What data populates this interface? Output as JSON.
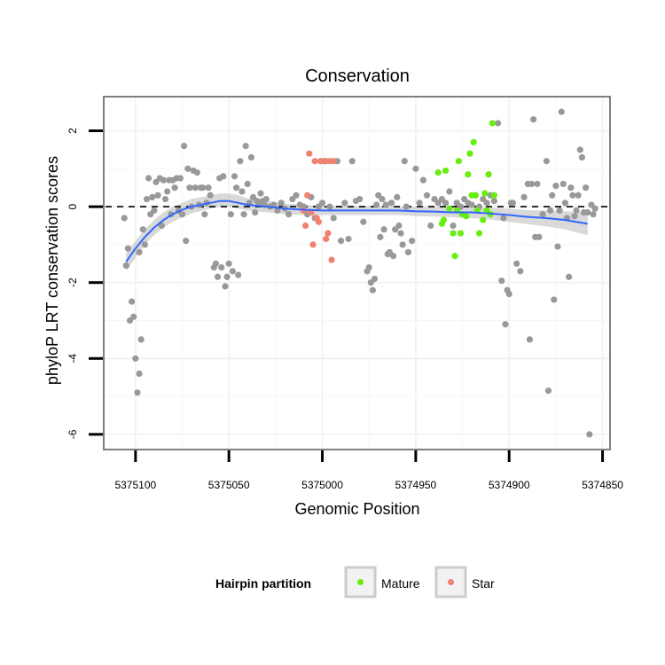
{
  "chart_data": {
    "type": "scatter",
    "title": "Conservation",
    "xlabel": "Genomic Position",
    "ylabel": "phyloP LRT conservation scores",
    "x_reversed": true,
    "xlim": [
      5375117,
      5374846
    ],
    "ylim": [
      -6.4,
      2.9
    ],
    "x_ticks": [
      5375100,
      5375050,
      5375000,
      5374950,
      5374900,
      5374850
    ],
    "x_tick_labels": [
      "5375100",
      "5375050",
      "5375000",
      "5374950",
      "5374900",
      "5374850"
    ],
    "y_ticks": [
      2,
      0,
      -2,
      -4,
      -6
    ],
    "y_tick_labels": [
      "2",
      "0",
      "-2",
      "-4",
      "-6"
    ],
    "reference_line": {
      "y": 0,
      "style": "dashed"
    },
    "legend": {
      "title": "Hairpin partition",
      "position": "bottom",
      "entries": [
        {
          "label": "Mature",
          "color": "#66ee11"
        },
        {
          "label": "Star",
          "color": "#f08070"
        }
      ]
    },
    "colors": {
      "other": "#999999",
      "Mature": "#66ee11",
      "Star": "#f08070",
      "smooth": "#3366ff",
      "band": "#cccccc"
    },
    "series": [
      {
        "name": "Other",
        "points": [
          [
            5375106,
            -0.3
          ],
          [
            5375105,
            -1.55
          ],
          [
            5375104,
            -1.1
          ],
          [
            5375103,
            -3
          ],
          [
            5375102,
            -2.5
          ],
          [
            5375101,
            -2.9
          ],
          [
            5375100,
            -4
          ],
          [
            5375099,
            -4.9
          ],
          [
            5375098,
            -4.4
          ],
          [
            5375097,
            -3.5
          ],
          [
            5375098,
            -1.2
          ],
          [
            5375096,
            -0.6
          ],
          [
            5375095,
            -1
          ],
          [
            5375094,
            0.2
          ],
          [
            5375093,
            0.75
          ],
          [
            5375092,
            -0.2
          ],
          [
            5375091,
            0.25
          ],
          [
            5375090,
            -0.1
          ],
          [
            5375089,
            0.65
          ],
          [
            5375088,
            0.3
          ],
          [
            5375087,
            0.75
          ],
          [
            5375086,
            -0.5
          ],
          [
            5375085,
            0.7
          ],
          [
            5375084,
            0.2
          ],
          [
            5375083,
            0.4
          ],
          [
            5375082,
            0.7
          ],
          [
            5375081,
            -0.2
          ],
          [
            5375080,
            0.7
          ],
          [
            5375079,
            0.5
          ],
          [
            5375078,
            0.75
          ],
          [
            5375077,
            -0.1
          ],
          [
            5375076,
            0.75
          ],
          [
            5375075,
            -0.2
          ],
          [
            5375074,
            1.6
          ],
          [
            5375073,
            -0.9
          ],
          [
            5375072,
            1
          ],
          [
            5375071,
            0.5
          ],
          [
            5375070,
            0
          ],
          [
            5375069,
            0.95
          ],
          [
            5375068,
            0.5
          ],
          [
            5375067,
            0.9
          ],
          [
            5375066,
            0.05
          ],
          [
            5375065,
            0.5
          ],
          [
            5375064,
            0.5
          ],
          [
            5375063,
            -0.2
          ],
          [
            5375062,
            0.1
          ],
          [
            5375061,
            0.5
          ],
          [
            5375060,
            0.3
          ],
          [
            5375058,
            -1.6
          ],
          [
            5375057,
            -1.5
          ],
          [
            5375056,
            -1.85
          ],
          [
            5375055,
            0.75
          ],
          [
            5375054,
            -1.6
          ],
          [
            5375053,
            0.8
          ],
          [
            5375052,
            -2.1
          ],
          [
            5375051,
            -1.85
          ],
          [
            5375050,
            -1.5
          ],
          [
            5375049,
            -0.2
          ],
          [
            5375048,
            -1.7
          ],
          [
            5375047,
            0.8
          ],
          [
            5375046,
            0.5
          ],
          [
            5375045,
            -1.8
          ],
          [
            5375044,
            1.2
          ],
          [
            5375043,
            0.4
          ],
          [
            5375042,
            -0.2
          ],
          [
            5375041,
            1.6
          ],
          [
            5375040,
            0.6
          ],
          [
            5375039,
            0.1
          ],
          [
            5375038,
            1.3
          ],
          [
            5375037,
            0.25
          ],
          [
            5375036,
            -0.15
          ],
          [
            5375035,
            0.15
          ],
          [
            5375034,
            0.1
          ],
          [
            5375033,
            0.35
          ],
          [
            5375032,
            0.15
          ],
          [
            5375031,
            0.05
          ],
          [
            5375030,
            0.2
          ],
          [
            5375028,
            0
          ],
          [
            5375026,
            0.05
          ],
          [
            5375024,
            -0.1
          ],
          [
            5375022,
            0.1
          ],
          [
            5375020,
            -0.05
          ],
          [
            5375018,
            -0.2
          ],
          [
            5375016,
            0.2
          ],
          [
            5375014,
            0.3
          ],
          [
            5375012,
            0.05
          ],
          [
            5375010,
            0
          ],
          [
            5375008,
            -0.2
          ],
          [
            5375006,
            0.25
          ],
          [
            5375004,
            -0.3
          ],
          [
            5375002,
            0
          ],
          [
            5375000,
            0.1
          ],
          [
            5374998,
            1.2
          ],
          [
            5374996,
            0
          ],
          [
            5374994,
            -0.3
          ],
          [
            5374992,
            1.2
          ],
          [
            5374990,
            -0.9
          ],
          [
            5374988,
            0.1
          ],
          [
            5374986,
            -0.85
          ],
          [
            5374984,
            1.2
          ],
          [
            5374982,
            0.15
          ],
          [
            5374980,
            0.2
          ],
          [
            5374978,
            -0.4
          ],
          [
            5374976,
            -1.7
          ],
          [
            5374975,
            -1.6
          ],
          [
            5374974,
            -2
          ],
          [
            5374973,
            -2.2
          ],
          [
            5374972,
            -1.9
          ],
          [
            5374971,
            0.05
          ],
          [
            5374970,
            0.3
          ],
          [
            5374969,
            -0.8
          ],
          [
            5374968,
            0.2
          ],
          [
            5374967,
            -0.6
          ],
          [
            5374966,
            0.05
          ],
          [
            5374965,
            -1.25
          ],
          [
            5374964,
            -1.2
          ],
          [
            5374963,
            0.1
          ],
          [
            5374962,
            -1.3
          ],
          [
            5374961,
            -0.6
          ],
          [
            5374960,
            0.25
          ],
          [
            5374959,
            -0.5
          ],
          [
            5374958,
            -0.7
          ],
          [
            5374957,
            -1
          ],
          [
            5374956,
            1.2
          ],
          [
            5374955,
            0
          ],
          [
            5374954,
            -1.2
          ],
          [
            5374952,
            -0.9
          ],
          [
            5374950,
            1
          ],
          [
            5374948,
            0.1
          ],
          [
            5374946,
            0.7
          ],
          [
            5374944,
            0.3
          ],
          [
            5374942,
            -0.5
          ],
          [
            5374940,
            0.2
          ],
          [
            5374938,
            0.1
          ],
          [
            5374936,
            0.2
          ],
          [
            5374934,
            0.1
          ],
          [
            5374932,
            0.4
          ],
          [
            5374930,
            -0.5
          ],
          [
            5374928,
            0.1
          ],
          [
            5374926,
            0
          ],
          [
            5374924,
            0.2
          ],
          [
            5374922,
            0.1
          ],
          [
            5374920,
            0.05
          ],
          [
            5374918,
            0.3
          ],
          [
            5374916,
            0
          ],
          [
            5374914,
            0.2
          ],
          [
            5374912,
            0.1
          ],
          [
            5374910,
            0.3
          ],
          [
            5374908,
            0.15
          ],
          [
            5374906,
            2.2
          ],
          [
            5374904,
            -1.95
          ],
          [
            5374903,
            -0.3
          ],
          [
            5374902,
            -3.1
          ],
          [
            5374901,
            -2.2
          ],
          [
            5374900,
            -2.3
          ],
          [
            5374899,
            0.1
          ],
          [
            5374898,
            0.1
          ],
          [
            5374896,
            -1.5
          ],
          [
            5374894,
            -1.7
          ],
          [
            5374892,
            0.25
          ],
          [
            5374890,
            0.6
          ],
          [
            5374889,
            -3.5
          ],
          [
            5374888,
            0.6
          ],
          [
            5374887,
            2.3
          ],
          [
            5374886,
            -0.8
          ],
          [
            5374885,
            0.6
          ],
          [
            5374884,
            -0.8
          ],
          [
            5374882,
            -0.2
          ],
          [
            5374880,
            1.2
          ],
          [
            5374879,
            -4.85
          ],
          [
            5374878,
            -0.1
          ],
          [
            5374877,
            0.3
          ],
          [
            5374876,
            -2.45
          ],
          [
            5374875,
            0.55
          ],
          [
            5374874,
            -1.05
          ],
          [
            5374873,
            -0.1
          ],
          [
            5374872,
            2.5
          ],
          [
            5374871,
            0.6
          ],
          [
            5374870,
            0.1
          ],
          [
            5374869,
            -0.3
          ],
          [
            5374868,
            -1.85
          ],
          [
            5374867,
            0.5
          ],
          [
            5374866,
            0.3
          ],
          [
            5374865,
            -0.25
          ],
          [
            5374864,
            -0.1
          ],
          [
            5374863,
            0.3
          ],
          [
            5374862,
            1.5
          ],
          [
            5374861,
            1.3
          ],
          [
            5374860,
            -0.15
          ],
          [
            5374859,
            0.5
          ],
          [
            5374858,
            -0.15
          ],
          [
            5374857,
            -6
          ],
          [
            5374856,
            0.05
          ],
          [
            5374855,
            -0.2
          ],
          [
            5374854,
            -0.05
          ]
        ]
      },
      {
        "name": "Mature",
        "points": [
          [
            5374938,
            0.9
          ],
          [
            5374936,
            -0.45
          ],
          [
            5374935,
            -0.35
          ],
          [
            5374934,
            0.95
          ],
          [
            5374932,
            -0.05
          ],
          [
            5374930,
            -0.7
          ],
          [
            5374929,
            -1.3
          ],
          [
            5374928,
            -0.1
          ],
          [
            5374927,
            1.2
          ],
          [
            5374926,
            -0.7
          ],
          [
            5374925,
            -0.2
          ],
          [
            5374923,
            -0.25
          ],
          [
            5374922,
            0.85
          ],
          [
            5374921,
            1.4
          ],
          [
            5374920,
            0.3
          ],
          [
            5374919,
            1.7
          ],
          [
            5374918,
            0.3
          ],
          [
            5374917,
            -0.1
          ],
          [
            5374916,
            -0.7
          ],
          [
            5374914,
            -0.35
          ],
          [
            5374913,
            0.35
          ],
          [
            5374912,
            -0.1
          ],
          [
            5374911,
            0.85
          ],
          [
            5374910,
            -0.2
          ],
          [
            5374909,
            2.2
          ],
          [
            5374908,
            0.3
          ]
        ]
      },
      {
        "name": "Star",
        "points": [
          [
            5375010,
            -0.1
          ],
          [
            5375009,
            -0.5
          ],
          [
            5375008,
            0.3
          ],
          [
            5375007,
            1.4
          ],
          [
            5375006,
            -0.15
          ],
          [
            5375005,
            -1
          ],
          [
            5375004,
            1.2
          ],
          [
            5375003,
            -0.3
          ],
          [
            5375002,
            -0.4
          ],
          [
            5375001,
            1.2
          ],
          [
            5374999,
            1.2
          ],
          [
            5374998,
            -0.85
          ],
          [
            5374997,
            -0.7
          ],
          [
            5374996,
            1.2
          ],
          [
            5374995,
            -1.4
          ],
          [
            5374994,
            1.2
          ]
        ]
      }
    ],
    "smooth_line": [
      [
        5375105,
        -1.45
      ],
      [
        5375100,
        -1.1
      ],
      [
        5375095,
        -0.8
      ],
      [
        5375090,
        -0.55
      ],
      [
        5375085,
        -0.35
      ],
      [
        5375080,
        -0.2
      ],
      [
        5375075,
        -0.08
      ],
      [
        5375070,
        0
      ],
      [
        5375060,
        0.1
      ],
      [
        5375055,
        0.15
      ],
      [
        5375050,
        0.15
      ],
      [
        5375045,
        0.1
      ],
      [
        5375040,
        0.05
      ],
      [
        5375030,
        0
      ],
      [
        5375020,
        -0.05
      ],
      [
        5375010,
        -0.08
      ],
      [
        5375000,
        -0.1
      ],
      [
        5374990,
        -0.1
      ],
      [
        5374980,
        -0.1
      ],
      [
        5374970,
        -0.1
      ],
      [
        5374960,
        -0.1
      ],
      [
        5374950,
        -0.12
      ],
      [
        5374940,
        -0.13
      ],
      [
        5374930,
        -0.15
      ],
      [
        5374920,
        -0.15
      ],
      [
        5374910,
        -0.18
      ],
      [
        5374900,
        -0.22
      ],
      [
        5374890,
        -0.27
      ],
      [
        5374880,
        -0.3
      ],
      [
        5374870,
        -0.35
      ],
      [
        5374858,
        -0.45
      ]
    ],
    "smooth_band": [
      [
        5375105,
        -1.7,
        -1.2
      ],
      [
        5375100,
        -1.35,
        -0.9
      ],
      [
        5375095,
        -1.0,
        -0.6
      ],
      [
        5375090,
        -0.75,
        -0.35
      ],
      [
        5375085,
        -0.55,
        -0.15
      ],
      [
        5375080,
        -0.4,
        0.0
      ],
      [
        5375075,
        -0.28,
        0.1
      ],
      [
        5375070,
        -0.18,
        0.2
      ],
      [
        5375060,
        -0.05,
        0.3
      ],
      [
        5375055,
        -0.0,
        0.35
      ],
      [
        5375050,
        0.0,
        0.35
      ],
      [
        5375045,
        -0.05,
        0.3
      ],
      [
        5375040,
        -0.1,
        0.22
      ],
      [
        5375030,
        -0.15,
        0.15
      ],
      [
        5375020,
        -0.2,
        0.08
      ],
      [
        5375010,
        -0.22,
        0.05
      ],
      [
        5375000,
        -0.22,
        0.02
      ],
      [
        5374990,
        -0.22,
        0.02
      ],
      [
        5374980,
        -0.22,
        0.02
      ],
      [
        5374970,
        -0.22,
        0.02
      ],
      [
        5374960,
        -0.22,
        0.0
      ],
      [
        5374950,
        -0.25,
        0.0
      ],
      [
        5374940,
        -0.26,
        -0.01
      ],
      [
        5374930,
        -0.28,
        -0.02
      ],
      [
        5374920,
        -0.3,
        -0.01
      ],
      [
        5374910,
        -0.34,
        -0.02
      ],
      [
        5374900,
        -0.4,
        -0.05
      ],
      [
        5374890,
        -0.46,
        -0.09
      ],
      [
        5374880,
        -0.52,
        -0.1
      ],
      [
        5374870,
        -0.6,
        -0.12
      ],
      [
        5374858,
        -0.75,
        -0.15
      ]
    ]
  }
}
